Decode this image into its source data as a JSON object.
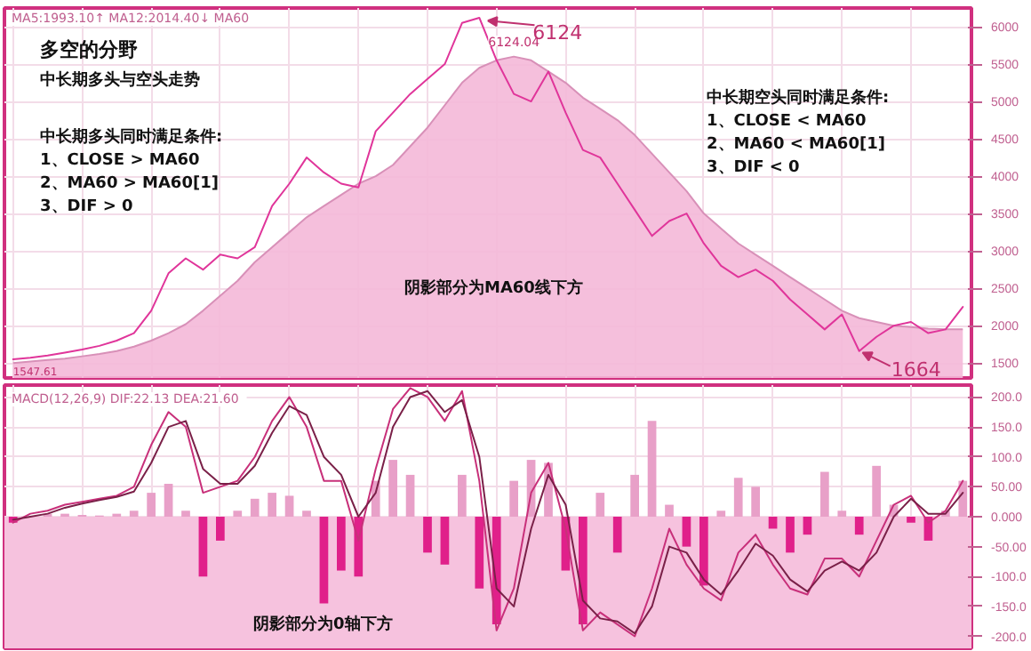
{
  "chart_data": [
    {
      "type": "line",
      "title": "多空的分野",
      "subtitle": "中长期多头与空头走势",
      "categories": [
        null,
        null,
        null,
        null,
        null,
        null,
        null,
        null,
        null,
        null,
        null,
        null,
        null,
        null,
        null,
        null,
        null,
        null,
        null,
        null,
        null,
        null,
        null,
        null,
        null,
        null,
        null,
        null,
        null,
        null,
        null,
        null,
        null,
        null,
        null,
        null,
        null,
        null,
        null,
        null,
        null,
        null,
        null,
        null,
        null,
        null,
        null,
        null,
        null,
        null,
        null,
        null,
        null,
        null,
        null,
        null
      ],
      "series": [
        {
          "type": "area",
          "color": "#f4b8d8",
          "values": [
            1500,
            1520,
            1540,
            1560,
            1590,
            1620,
            1660,
            1720,
            1800,
            1900,
            2020,
            2200,
            2400,
            2600,
            2850,
            3050,
            3250,
            3450,
            3600,
            3750,
            3900,
            4000,
            4150,
            4400,
            4650,
            4950,
            5250,
            5450,
            5550,
            5600,
            5550,
            5400,
            5250,
            5050,
            4900,
            4750,
            4550,
            4300,
            4050,
            3800,
            3500,
            3300,
            3100,
            2950,
            2800,
            2650,
            2500,
            2350,
            2200,
            2100,
            2050,
            2000,
            1980,
            1960,
            1950,
            1950
          ]
        },
        {
          "color": "#e0359a",
          "values": [
            1550,
            1570,
            1600,
            1640,
            1680,
            1730,
            1800,
            1900,
            2200,
            2700,
            2900,
            2750,
            2950,
            2900,
            3050,
            3600,
            3900,
            4250,
            4050,
            3900,
            3850,
            4600,
            4850,
            5100,
            5300,
            5500,
            6050,
            6120,
            5550,
            5100,
            5000,
            5400,
            4850,
            4350,
            4250,
            3900,
            3550,
            3200,
            3400,
            3500,
            3100,
            2800,
            2650,
            2750,
            2600,
            2350,
            2150,
            1950,
            2150,
            1660,
            1850,
            2000,
            2050,
            1900,
            1950,
            2250
          ]
        }
      ],
      "ylim": [
        1300,
        6250
      ],
      "yticks": [
        1500,
        2000,
        2500,
        3000,
        3500,
        4000,
        4500,
        5000,
        5500,
        6000
      ],
      "grid": true,
      "tick_labels": "y",
      "annotations": [
        "MA5:1993.10↑  MA12:2014.40↓  MA60",
        "中长期多头同时满足条件:",
        "1、CLOSE > MA60",
        "2、MA60 > MA60[1]",
        "3、DIF > 0",
        "中长期空头同时满足条件:",
        "1、CLOSE < MA60",
        "2、MA60 < MA60[1]",
        "3、DIF < 0",
        "阴影部分为MA60线下方",
        "6124.04",
        "6124",
        "1664",
        "1547.61"
      ]
    },
    {
      "type": "bar",
      "categories": [
        null,
        null,
        null,
        null,
        null,
        null,
        null,
        null,
        null,
        null,
        null,
        null,
        null,
        null,
        null,
        null,
        null,
        null,
        null,
        null,
        null,
        null,
        null,
        null,
        null,
        null,
        null,
        null,
        null,
        null,
        null,
        null,
        null,
        null,
        null,
        null,
        null,
        null,
        null,
        null,
        null,
        null,
        null,
        null,
        null,
        null,
        null,
        null,
        null,
        null,
        null,
        null,
        null,
        null,
        null,
        null
      ],
      "series": [
        {
          "values": [
            -10,
            null,
            5,
            5,
            3,
            2,
            5,
            10,
            40,
            55,
            10,
            -100,
            -40,
            10,
            30,
            40,
            35,
            10,
            -145,
            -90,
            -100,
            60,
            95,
            70,
            -60,
            -80,
            70,
            -120,
            -180,
            60,
            95,
            90,
            -90,
            -180,
            40,
            -60,
            70,
            160,
            20,
            -50,
            -115,
            10,
            65,
            50,
            -20,
            -60,
            -30,
            75,
            10,
            -30,
            85,
            20,
            -10,
            -40,
            10,
            60
          ],
          "colors": [
            "#e0208a",
            "#e8a0c8",
            "#e8a0c8",
            "#e8a0c8",
            "#e8a0c8",
            "#e8a0c8",
            "#e8a0c8",
            "#e8a0c8",
            "#e8a0c8",
            "#e8a0c8",
            "#e8a0c8",
            "#e0208a",
            "#e0208a",
            "#e8a0c8",
            "#e8a0c8",
            "#e8a0c8",
            "#e8a0c8",
            "#e8a0c8",
            "#e0208a",
            "#e0208a",
            "#e0208a",
            "#e8a0c8",
            "#e8a0c8",
            "#e8a0c8",
            "#e0208a",
            "#e0208a",
            "#e8a0c8",
            "#e0208a",
            "#e0208a",
            "#e8a0c8",
            "#e8a0c8",
            "#e8a0c8",
            "#e0208a",
            "#e0208a",
            "#e8a0c8",
            "#e0208a",
            "#e8a0c8",
            "#e8a0c8",
            "#e8a0c8",
            "#e0208a",
            "#e0208a",
            "#e8a0c8",
            "#e8a0c8",
            "#e8a0c8",
            "#e0208a",
            "#e0208a",
            "#e0208a",
            "#e8a0c8",
            "#e8a0c8",
            "#e0208a",
            "#e8a0c8",
            "#e8a0c8",
            "#e0208a",
            "#e0208a",
            "#e8a0c8",
            "#e8a0c8"
          ]
        },
        {
          "type": "line",
          "color": "#c8307a",
          "values": [
            -10,
            5,
            10,
            20,
            25,
            30,
            35,
            50,
            120,
            175,
            150,
            40,
            50,
            60,
            100,
            160,
            200,
            150,
            60,
            60,
            -40,
            80,
            180,
            215,
            200,
            160,
            210,
            60,
            -190,
            -120,
            40,
            90,
            -20,
            -190,
            -160,
            -180,
            -200,
            -120,
            -20,
            -80,
            -120,
            -140,
            -60,
            -30,
            -80,
            -120,
            -130,
            -70,
            -70,
            -100,
            -40,
            20,
            35,
            -10,
            10,
            60
          ]
        },
        {
          "type": "line",
          "color": "#7a2048",
          "values": [
            -5,
            0,
            5,
            15,
            22,
            28,
            33,
            42,
            90,
            150,
            160,
            80,
            55,
            55,
            85,
            140,
            185,
            170,
            100,
            70,
            0,
            40,
            150,
            200,
            210,
            175,
            195,
            100,
            -120,
            -150,
            -20,
            70,
            20,
            -140,
            -170,
            -175,
            -195,
            -150,
            -50,
            -60,
            -105,
            -130,
            -90,
            -45,
            -65,
            -105,
            -125,
            -90,
            -75,
            -90,
            -60,
            0,
            30,
            5,
            5,
            40
          ]
        }
      ],
      "bands": [
        {
          "axis": "y",
          "from": -220,
          "to": 0,
          "color": "#f6c2de"
        }
      ],
      "ylim": [
        -220,
        220
      ],
      "yticks": [
        {
          "value": 200,
          "label": "200.0"
        },
        {
          "value": 150,
          "label": "150.0"
        },
        {
          "value": 100,
          "label": "100.0"
        },
        {
          "value": 50,
          "label": "50.00"
        },
        {
          "value": 0,
          "label": "0.000"
        },
        {
          "value": -50,
          "label": "-50.00"
        },
        {
          "value": -100,
          "label": "-100.0"
        },
        {
          "value": -150,
          "label": "-150.0"
        },
        {
          "value": -200,
          "label": "-200.0"
        }
      ],
      "grid": true,
      "tick_labels": "y",
      "annotations": [
        "MACD(12,26,9)  DIF:22.13  DEA:21.60",
        "阴影部分为0轴下方"
      ]
    }
  ]
}
